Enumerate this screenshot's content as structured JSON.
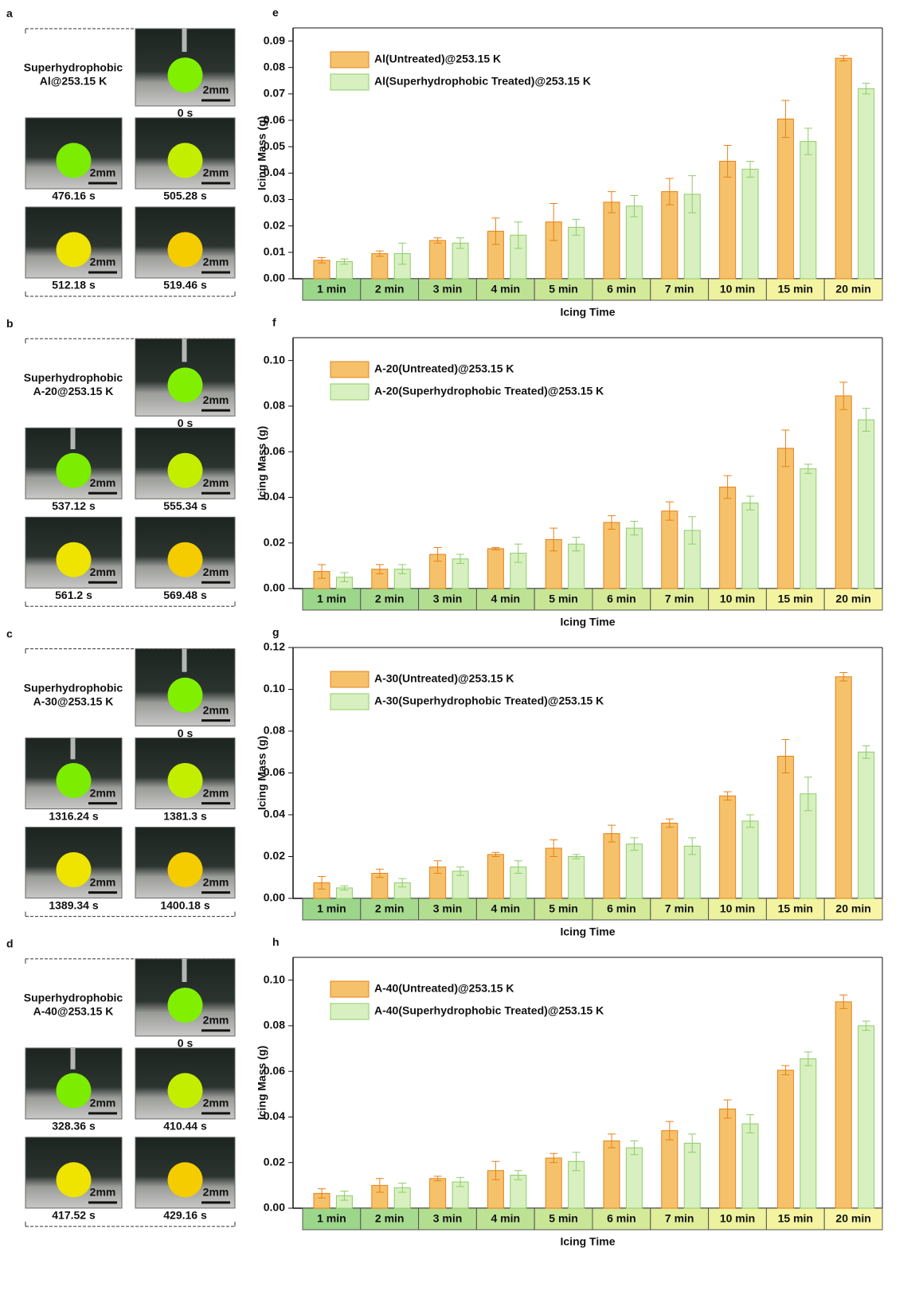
{
  "photo_panels": [
    {
      "panel": "a",
      "title": [
        "Superhydrophobic",
        "Al@253.15 K"
      ],
      "scale_bar": "2mm",
      "times": [
        "0 s",
        "476.16 s",
        "505.28 s",
        "512.18 s",
        "519.46 s"
      ]
    },
    {
      "panel": "b",
      "title": [
        "Superhydrophobic",
        "A-20@253.15 K"
      ],
      "scale_bar": "2mm",
      "times": [
        "0 s",
        "537.12 s",
        "555.34 s",
        "561.2 s",
        "569.48 s"
      ]
    },
    {
      "panel": "c",
      "title": [
        "Superhydrophobic",
        "A-30@253.15 K"
      ],
      "scale_bar": "2mm",
      "times": [
        "0 s",
        "1316.24 s",
        "1381.3 s",
        "1389.34 s",
        "1400.18 s"
      ]
    },
    {
      "panel": "d",
      "title": [
        "Superhydrophobic",
        "A-40@253.15 K"
      ],
      "scale_bar": "2mm",
      "times": [
        "0 s",
        "328.36 s",
        "410.44 s",
        "417.52 s",
        "429.16 s"
      ]
    }
  ],
  "chart_data": [
    {
      "type": "bar",
      "panel": "e",
      "y_label": "Icing Mass (g)",
      "x_label": "Icing Time",
      "categories": [
        "1 min",
        "2 min",
        "3 min",
        "4 min",
        "5 min",
        "6 min",
        "7 min",
        "10 min",
        "15 min",
        "20 min"
      ],
      "series": [
        {
          "name": "Al(Untreated)@253.15 K",
          "color": "#f5c26b",
          "values": [
            0.007,
            0.0095,
            0.0145,
            0.018,
            0.0215,
            0.029,
            0.033,
            0.0445,
            0.0605,
            0.0835
          ],
          "errors": [
            0.001,
            0.001,
            0.001,
            0.005,
            0.007,
            0.004,
            0.005,
            0.006,
            0.007,
            0.001
          ]
        },
        {
          "name": "Al(Superhydrophobic Treated)@253.15 K",
          "color": "#d8f0c0",
          "values": [
            0.0065,
            0.0095,
            0.0135,
            0.0165,
            0.0195,
            0.0275,
            0.032,
            0.0415,
            0.052,
            0.072
          ],
          "errors": [
            0.001,
            0.004,
            0.002,
            0.005,
            0.003,
            0.004,
            0.007,
            0.003,
            0.005,
            0.002
          ]
        }
      ],
      "ylim": [
        0,
        0.095
      ],
      "yticks": [
        {
          "value": 0,
          "label": "0.00"
        },
        {
          "value": 0.01,
          "label": "0.01"
        },
        {
          "value": 0.02,
          "label": "0.02"
        },
        {
          "value": 0.03,
          "label": "0.03"
        },
        {
          "value": 0.04,
          "label": "0.04"
        },
        {
          "value": 0.05,
          "label": "0.05"
        },
        {
          "value": 0.06,
          "label": "0.06"
        },
        {
          "value": 0.07,
          "label": "0.07"
        },
        {
          "value": 0.08,
          "label": "0.08"
        },
        {
          "value": 0.09,
          "label": "0.09"
        }
      ]
    },
    {
      "type": "bar",
      "panel": "f",
      "y_label": "Icing Mass (g)",
      "x_label": "Icing Time",
      "categories": [
        "1 min",
        "2 min",
        "3 min",
        "4 min",
        "5 min",
        "6 min",
        "7 min",
        "10 min",
        "15 min",
        "20 min"
      ],
      "series": [
        {
          "name": "A-20(Untreated)@253.15 K",
          "color": "#f5c26b",
          "values": [
            0.0075,
            0.0085,
            0.015,
            0.0175,
            0.0215,
            0.029,
            0.034,
            0.0445,
            0.0615,
            0.0845
          ],
          "errors": [
            0.003,
            0.002,
            0.003,
            0.0005,
            0.005,
            0.003,
            0.004,
            0.005,
            0.008,
            0.006
          ]
        },
        {
          "name": "A-20(Superhydrophobic Treated)@253.15 K",
          "color": "#d8f0c0",
          "values": [
            0.005,
            0.0085,
            0.013,
            0.0155,
            0.0195,
            0.0265,
            0.0255,
            0.0375,
            0.0525,
            0.074
          ],
          "errors": [
            0.002,
            0.002,
            0.002,
            0.004,
            0.003,
            0.003,
            0.006,
            0.003,
            0.002,
            0.005
          ]
        }
      ],
      "ylim": [
        0,
        0.11
      ],
      "yticks": [
        {
          "value": 0,
          "label": "0.00"
        },
        {
          "value": 0.02,
          "label": "0.02"
        },
        {
          "value": 0.04,
          "label": "0.04"
        },
        {
          "value": 0.06,
          "label": "0.06"
        },
        {
          "value": 0.08,
          "label": "0.08"
        },
        {
          "value": 0.1,
          "label": "0.10"
        }
      ]
    },
    {
      "type": "bar",
      "panel": "g",
      "y_label": "Icing Mass (g)",
      "x_label": "Icing Time",
      "categories": [
        "1 min",
        "2 min",
        "3 min",
        "4 min",
        "5 min",
        "6 min",
        "7 min",
        "10 min",
        "15 min",
        "20 min"
      ],
      "series": [
        {
          "name": "A-30(Untreated)@253.15 K",
          "color": "#f5c26b",
          "values": [
            0.0075,
            0.012,
            0.015,
            0.021,
            0.024,
            0.031,
            0.036,
            0.049,
            0.068,
            0.106
          ],
          "errors": [
            0.003,
            0.002,
            0.003,
            0.001,
            0.004,
            0.004,
            0.002,
            0.002,
            0.008,
            0.002
          ]
        },
        {
          "name": "A-30(Superhydrophobic Treated)@253.15 K",
          "color": "#d8f0c0",
          "values": [
            0.005,
            0.0075,
            0.013,
            0.015,
            0.02,
            0.026,
            0.025,
            0.037,
            0.05,
            0.07
          ],
          "errors": [
            0.001,
            0.002,
            0.002,
            0.003,
            0.001,
            0.003,
            0.004,
            0.003,
            0.008,
            0.003
          ]
        }
      ],
      "ylim": [
        0,
        0.12
      ],
      "yticks": [
        {
          "value": 0,
          "label": "0.00"
        },
        {
          "value": 0.02,
          "label": "0.02"
        },
        {
          "value": 0.04,
          "label": "0.04"
        },
        {
          "value": 0.06,
          "label": "0.06"
        },
        {
          "value": 0.08,
          "label": "0.08"
        },
        {
          "value": 0.1,
          "label": "0.10"
        },
        {
          "value": 0.12,
          "label": "0.12"
        }
      ]
    },
    {
      "type": "bar",
      "panel": "h",
      "y_label": "Icing Mass (g)",
      "x_label": "Icing Time",
      "categories": [
        "1 min",
        "2 min",
        "3 min",
        "4 min",
        "5 min",
        "6 min",
        "7 min",
        "10 min",
        "15 min",
        "20 min"
      ],
      "series": [
        {
          "name": "A-40(Untreated)@253.15 K",
          "color": "#f5c26b",
          "values": [
            0.0065,
            0.01,
            0.013,
            0.0165,
            0.022,
            0.0295,
            0.034,
            0.0435,
            0.0605,
            0.0905
          ],
          "errors": [
            0.002,
            0.003,
            0.001,
            0.004,
            0.002,
            0.003,
            0.004,
            0.004,
            0.002,
            0.003
          ]
        },
        {
          "name": "A-40(Superhydrophobic Treated)@253.15 K",
          "color": "#d8f0c0",
          "values": [
            0.0055,
            0.009,
            0.0115,
            0.0145,
            0.0205,
            0.0265,
            0.0285,
            0.037,
            0.0655,
            0.08
          ],
          "errors": [
            0.002,
            0.002,
            0.002,
            0.002,
            0.004,
            0.003,
            0.004,
            0.004,
            0.003,
            0.002
          ]
        }
      ],
      "ylim": [
        0,
        0.11
      ],
      "yticks": [
        {
          "value": 0,
          "label": "0.00"
        },
        {
          "value": 0.02,
          "label": "0.02"
        },
        {
          "value": 0.04,
          "label": "0.04"
        },
        {
          "value": 0.06,
          "label": "0.06"
        },
        {
          "value": 0.08,
          "label": "0.08"
        },
        {
          "value": 0.1,
          "label": "0.10"
        }
      ]
    }
  ]
}
